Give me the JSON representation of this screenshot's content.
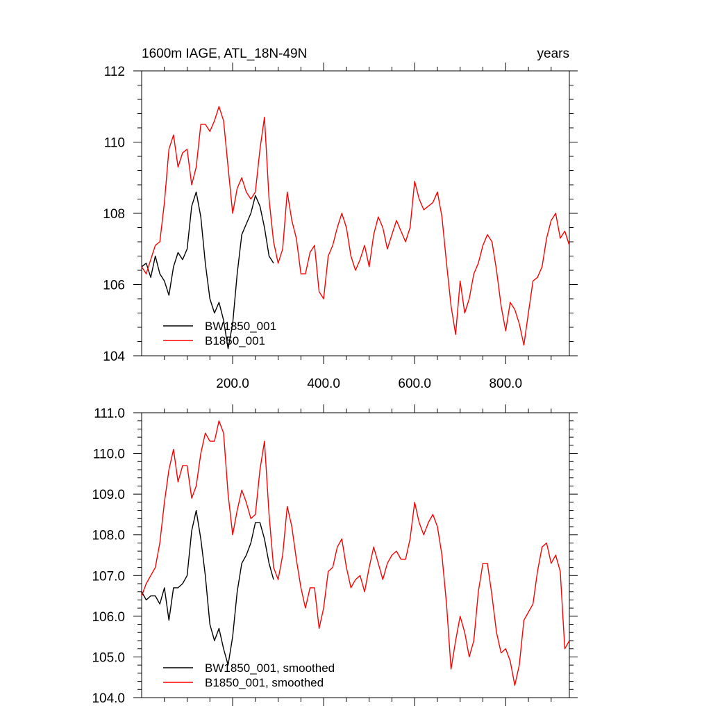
{
  "chart_data": [
    {
      "type": "line",
      "title": "1600m IAGE, ATL_18N-49N",
      "units_label": "years",
      "xlim": [
        0,
        940
      ],
      "ylim": [
        104,
        112
      ],
      "x_ticks": [
        200,
        400,
        600,
        800
      ],
      "x_tick_labels": [
        "200.0",
        "400.0",
        "600.0",
        "800.0"
      ],
      "y_ticks": [
        104,
        106,
        108,
        110,
        112
      ],
      "y_tick_labels": [
        "104",
        "106",
        "108",
        "110",
        "112"
      ],
      "grid": false,
      "legend_position": "bottom-left",
      "series": [
        {
          "name": "BW1850_001",
          "color": "#000000",
          "x": [
            0,
            10,
            20,
            30,
            40,
            50,
            60,
            70,
            80,
            90,
            100,
            110,
            120,
            130,
            140,
            150,
            160,
            170,
            180,
            190,
            200,
            210,
            220,
            230,
            240,
            250,
            260,
            270,
            280,
            290
          ],
          "y": [
            106.5,
            106.6,
            106.2,
            106.8,
            106.3,
            106.1,
            105.7,
            106.5,
            106.9,
            106.7,
            107.0,
            108.2,
            108.6,
            107.9,
            106.6,
            105.6,
            105.2,
            105.5,
            105.0,
            104.2,
            104.9,
            106.3,
            107.4,
            107.7,
            108.0,
            108.5,
            108.2,
            107.6,
            106.8,
            106.6
          ]
        },
        {
          "name": "B1850_001",
          "color": "#ff0000",
          "x": [
            0,
            10,
            20,
            30,
            40,
            50,
            60,
            70,
            80,
            90,
            100,
            110,
            120,
            130,
            140,
            150,
            160,
            170,
            180,
            190,
            200,
            210,
            220,
            230,
            240,
            250,
            260,
            270,
            280,
            290,
            300,
            310,
            320,
            330,
            340,
            350,
            360,
            370,
            380,
            390,
            400,
            410,
            420,
            430,
            440,
            450,
            460,
            470,
            480,
            490,
            500,
            510,
            520,
            530,
            540,
            550,
            560,
            570,
            580,
            590,
            600,
            610,
            620,
            630,
            640,
            650,
            660,
            670,
            680,
            690,
            700,
            710,
            720,
            730,
            740,
            750,
            760,
            770,
            780,
            790,
            800,
            810,
            820,
            830,
            840,
            850,
            860,
            870,
            880,
            890,
            900,
            910,
            920,
            930,
            940
          ],
          "y": [
            106.5,
            106.3,
            106.7,
            107.1,
            107.2,
            108.3,
            109.8,
            110.2,
            109.3,
            109.7,
            109.8,
            108.8,
            109.3,
            110.5,
            110.5,
            110.3,
            110.6,
            111.0,
            110.6,
            109.3,
            108.0,
            108.7,
            109.0,
            108.6,
            108.4,
            108.6,
            109.8,
            110.7,
            108.4,
            107.2,
            106.6,
            107.0,
            108.6,
            107.8,
            107.3,
            106.3,
            106.3,
            106.9,
            107.1,
            105.8,
            105.6,
            106.8,
            107.1,
            107.6,
            108.0,
            107.6,
            106.8,
            106.4,
            106.7,
            107.1,
            106.5,
            107.4,
            107.9,
            107.6,
            107.0,
            107.4,
            107.8,
            107.5,
            107.2,
            107.6,
            108.9,
            108.4,
            108.1,
            108.2,
            108.3,
            108.6,
            107.9,
            106.6,
            105.4,
            104.6,
            106.1,
            105.2,
            105.6,
            106.3,
            106.6,
            107.1,
            107.4,
            107.2,
            106.4,
            105.4,
            104.7,
            105.5,
            105.3,
            104.9,
            104.3,
            105.2,
            106.1,
            106.2,
            106.5,
            107.3,
            107.8,
            108.0,
            107.3,
            107.5,
            107.1
          ]
        }
      ]
    },
    {
      "type": "line",
      "title": "",
      "xlim": [
        0,
        940
      ],
      "ylim": [
        104,
        111
      ],
      "x_ticks": [
        200,
        400,
        600,
        800
      ],
      "x_tick_labels": [],
      "y_ticks": [
        104,
        105,
        106,
        107,
        108,
        109,
        110,
        111
      ],
      "y_tick_labels": [
        "104.0",
        "105.0",
        "106.0",
        "107.0",
        "108.0",
        "109.0",
        "110.0",
        "111.0"
      ],
      "grid": false,
      "legend_position": "bottom-left",
      "series": [
        {
          "name": "BW1850_001, smoothed",
          "color": "#000000",
          "x": [
            0,
            10,
            20,
            30,
            40,
            50,
            60,
            70,
            80,
            90,
            100,
            110,
            120,
            130,
            140,
            150,
            160,
            170,
            180,
            190,
            200,
            210,
            220,
            230,
            240,
            250,
            260,
            270,
            280,
            290
          ],
          "y": [
            106.6,
            106.4,
            106.5,
            106.5,
            106.3,
            106.7,
            105.9,
            106.7,
            106.7,
            106.8,
            107.0,
            108.1,
            108.6,
            107.9,
            107.0,
            105.8,
            105.4,
            105.7,
            105.2,
            104.8,
            105.5,
            106.6,
            107.3,
            107.5,
            107.8,
            108.3,
            108.3,
            107.9,
            107.3,
            106.9
          ]
        },
        {
          "name": "B1850_001, smoothed",
          "color": "#ff0000",
          "x": [
            0,
            10,
            20,
            30,
            40,
            50,
            60,
            70,
            80,
            90,
            100,
            110,
            120,
            130,
            140,
            150,
            160,
            170,
            180,
            190,
            200,
            210,
            220,
            230,
            240,
            250,
            260,
            270,
            280,
            290,
            300,
            310,
            320,
            330,
            340,
            350,
            360,
            370,
            380,
            390,
            400,
            410,
            420,
            430,
            440,
            450,
            460,
            470,
            480,
            490,
            500,
            510,
            520,
            530,
            540,
            550,
            560,
            570,
            580,
            590,
            600,
            610,
            620,
            630,
            640,
            650,
            660,
            670,
            680,
            690,
            700,
            710,
            720,
            730,
            740,
            750,
            760,
            770,
            780,
            790,
            800,
            810,
            820,
            830,
            840,
            850,
            860,
            870,
            880,
            890,
            900,
            910,
            920,
            930,
            940
          ],
          "y": [
            106.5,
            106.8,
            107.0,
            107.2,
            107.8,
            108.8,
            109.6,
            110.1,
            109.3,
            109.7,
            109.7,
            108.9,
            109.2,
            110.0,
            110.5,
            110.3,
            110.3,
            110.8,
            110.5,
            109.0,
            108.0,
            108.6,
            109.1,
            108.8,
            108.4,
            108.5,
            109.6,
            110.3,
            108.5,
            107.2,
            106.9,
            107.5,
            108.7,
            108.2,
            107.4,
            106.7,
            106.2,
            106.7,
            106.7,
            105.7,
            106.2,
            107.1,
            107.2,
            107.7,
            107.9,
            107.2,
            106.7,
            106.9,
            107.0,
            106.6,
            107.2,
            107.7,
            107.3,
            106.9,
            107.3,
            107.5,
            107.6,
            107.4,
            107.4,
            107.9,
            108.8,
            108.3,
            108.0,
            108.3,
            108.5,
            108.2,
            107.5,
            106.3,
            104.7,
            105.4,
            106.0,
            105.6,
            105.0,
            105.4,
            106.6,
            107.3,
            107.3,
            106.5,
            105.6,
            105.1,
            105.2,
            104.9,
            104.3,
            104.8,
            105.9,
            106.1,
            106.3,
            107.1,
            107.7,
            107.8,
            107.3,
            107.5,
            107.1,
            105.2,
            105.4
          ]
        }
      ]
    }
  ]
}
